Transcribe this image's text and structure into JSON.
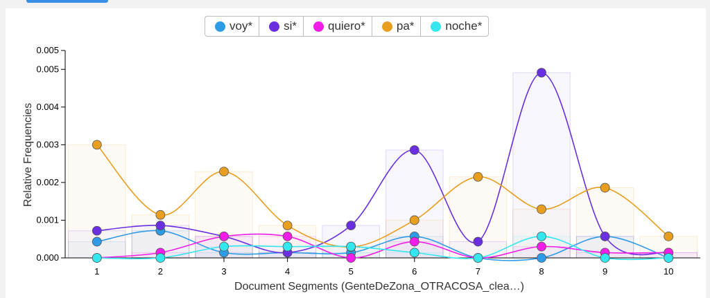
{
  "chart_data": {
    "type": "line",
    "xlabel": "Document Segments (GenteDeZona_OTRACOSA_clea…)",
    "ylabel": "Relative Frequencies",
    "x": [
      1,
      2,
      3,
      4,
      5,
      6,
      7,
      8,
      9,
      10
    ],
    "ylim": [
      0,
      0.0055
    ],
    "yticks": [
      0,
      0.001,
      0.002,
      0.003,
      0.004,
      0.005,
      0.0055
    ],
    "ytick_labels": [
      "0.000",
      "0.001",
      "0.002",
      "0.003",
      "0.004",
      "0.005",
      "0.005"
    ],
    "series": [
      {
        "name": "voy*",
        "color": "#2e9be6",
        "values": [
          0.00043,
          0.00072,
          0.00014,
          0.00014,
          0.00014,
          0.00057,
          0.0,
          0.0,
          0.00057,
          0.0
        ]
      },
      {
        "name": "si*",
        "color": "#6a2fe0",
        "values": [
          0.00072,
          0.00086,
          0.00057,
          0.00014,
          0.00086,
          0.00286,
          0.00043,
          0.00491,
          0.00057,
          0.00014
        ]
      },
      {
        "name": "quiero*",
        "color": "#f21de8",
        "values": [
          0.0,
          0.00014,
          0.00057,
          0.00057,
          0.0,
          0.00043,
          0.0,
          0.0003,
          0.00014,
          0.00014
        ]
      },
      {
        "name": "pa*",
        "color": "#e89e1e",
        "values": [
          0.003,
          0.00114,
          0.00229,
          0.00086,
          0.00029,
          0.001,
          0.00215,
          0.00129,
          0.00186,
          0.00057
        ]
      },
      {
        "name": "noche*",
        "color": "#34e6ee",
        "values": [
          0.0,
          0.0,
          0.0003,
          0.0003,
          0.0003,
          0.00014,
          0.0,
          0.00057,
          0.0,
          0.0
        ]
      }
    ]
  }
}
